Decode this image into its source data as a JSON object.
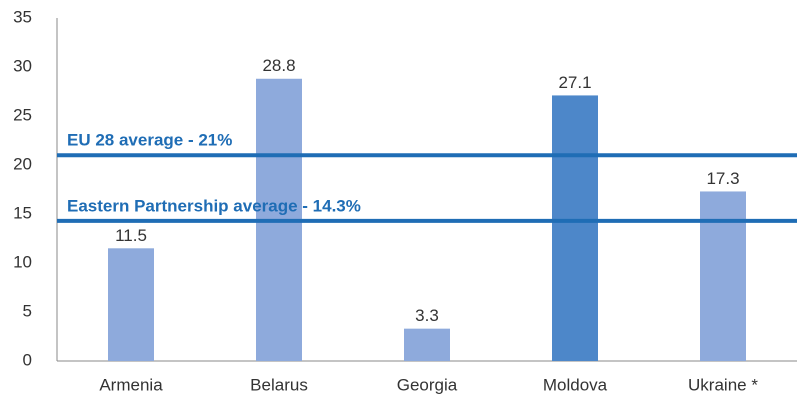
{
  "chart_data": {
    "type": "bar",
    "categories": [
      "Armenia",
      "Belarus",
      "Georgia",
      "Moldova",
      "Ukraine *"
    ],
    "values": [
      11.5,
      28.8,
      3.3,
      27.1,
      17.3
    ],
    "colors": [
      "#8eaadc",
      "#8eaadc",
      "#8eaadc",
      "#4d87c9",
      "#8eaadc"
    ],
    "ylim": [
      0,
      35
    ],
    "yticks": [
      0,
      5,
      10,
      15,
      20,
      25,
      30,
      35
    ],
    "grid": false,
    "reference_lines": [
      {
        "value": 21,
        "label": "EU 28 average - 21%",
        "color": "#1f6db5"
      },
      {
        "value": 14.3,
        "label": "Eastern Partnership average - 14.3%",
        "color": "#1f6db5"
      }
    ]
  }
}
